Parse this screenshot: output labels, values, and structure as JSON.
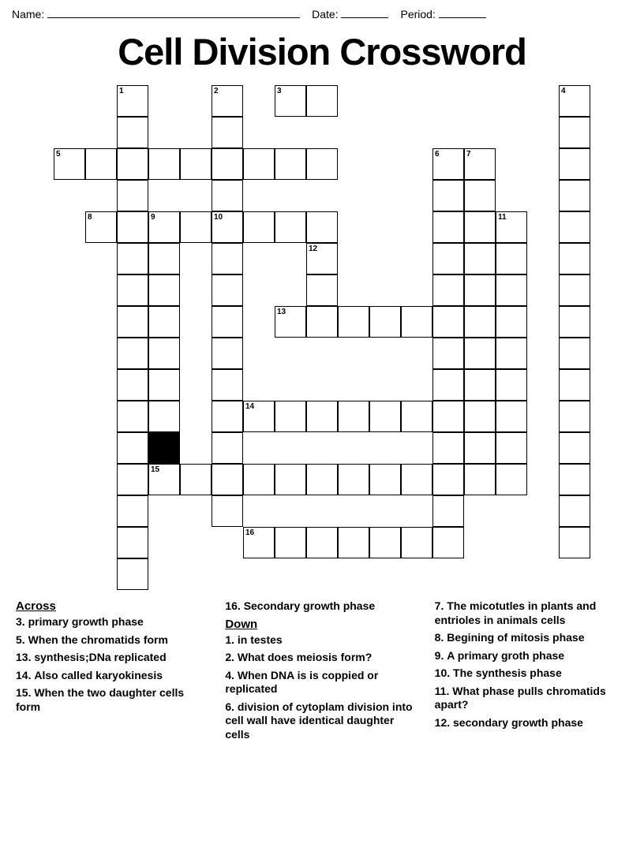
{
  "header": {
    "name_label": "Name:",
    "date_label": "Date:",
    "period_label": "Period:"
  },
  "title": "Cell Division Crossword",
  "grid": {
    "cell_size": 40,
    "cols": 17,
    "rows": 16,
    "cells": [
      {
        "r": 0,
        "c": 2,
        "num": "1"
      },
      {
        "r": 0,
        "c": 5,
        "num": "2"
      },
      {
        "r": 0,
        "c": 7,
        "num": "3"
      },
      {
        "r": 0,
        "c": 8
      },
      {
        "r": 0,
        "c": 16,
        "num": "4"
      },
      {
        "r": 1,
        "c": 2
      },
      {
        "r": 1,
        "c": 5
      },
      {
        "r": 1,
        "c": 16
      },
      {
        "r": 2,
        "c": 0,
        "num": "5"
      },
      {
        "r": 2,
        "c": 1
      },
      {
        "r": 2,
        "c": 2
      },
      {
        "r": 2,
        "c": 3
      },
      {
        "r": 2,
        "c": 4
      },
      {
        "r": 2,
        "c": 5
      },
      {
        "r": 2,
        "c": 6
      },
      {
        "r": 2,
        "c": 7
      },
      {
        "r": 2,
        "c": 8
      },
      {
        "r": 2,
        "c": 12,
        "num": "6"
      },
      {
        "r": 2,
        "c": 13,
        "num": "7"
      },
      {
        "r": 2,
        "c": 16
      },
      {
        "r": 3,
        "c": 2
      },
      {
        "r": 3,
        "c": 5
      },
      {
        "r": 3,
        "c": 12
      },
      {
        "r": 3,
        "c": 13
      },
      {
        "r": 3,
        "c": 16
      },
      {
        "r": 4,
        "c": 1,
        "num": "8"
      },
      {
        "r": 4,
        "c": 2
      },
      {
        "r": 4,
        "c": 3,
        "num": "9"
      },
      {
        "r": 4,
        "c": 4
      },
      {
        "r": 4,
        "c": 5,
        "num": "10"
      },
      {
        "r": 4,
        "c": 6
      },
      {
        "r": 4,
        "c": 7
      },
      {
        "r": 4,
        "c": 8
      },
      {
        "r": 4,
        "c": 12
      },
      {
        "r": 4,
        "c": 13
      },
      {
        "r": 4,
        "c": 14,
        "num": "11"
      },
      {
        "r": 4,
        "c": 16
      },
      {
        "r": 5,
        "c": 2
      },
      {
        "r": 5,
        "c": 3
      },
      {
        "r": 5,
        "c": 5
      },
      {
        "r": 5,
        "c": 8,
        "num": "12"
      },
      {
        "r": 5,
        "c": 12
      },
      {
        "r": 5,
        "c": 13
      },
      {
        "r": 5,
        "c": 14
      },
      {
        "r": 5,
        "c": 16
      },
      {
        "r": 6,
        "c": 2
      },
      {
        "r": 6,
        "c": 3
      },
      {
        "r": 6,
        "c": 5
      },
      {
        "r": 6,
        "c": 8
      },
      {
        "r": 6,
        "c": 12
      },
      {
        "r": 6,
        "c": 13
      },
      {
        "r": 6,
        "c": 14
      },
      {
        "r": 6,
        "c": 16
      },
      {
        "r": 7,
        "c": 2
      },
      {
        "r": 7,
        "c": 3
      },
      {
        "r": 7,
        "c": 5
      },
      {
        "r": 7,
        "c": 7,
        "num": "13"
      },
      {
        "r": 7,
        "c": 8
      },
      {
        "r": 7,
        "c": 9
      },
      {
        "r": 7,
        "c": 10
      },
      {
        "r": 7,
        "c": 11
      },
      {
        "r": 7,
        "c": 12
      },
      {
        "r": 7,
        "c": 13
      },
      {
        "r": 7,
        "c": 14
      },
      {
        "r": 7,
        "c": 16
      },
      {
        "r": 8,
        "c": 2
      },
      {
        "r": 8,
        "c": 3
      },
      {
        "r": 8,
        "c": 5
      },
      {
        "r": 8,
        "c": 12
      },
      {
        "r": 8,
        "c": 13
      },
      {
        "r": 8,
        "c": 14
      },
      {
        "r": 8,
        "c": 16
      },
      {
        "r": 9,
        "c": 2
      },
      {
        "r": 9,
        "c": 3
      },
      {
        "r": 9,
        "c": 5
      },
      {
        "r": 9,
        "c": 12
      },
      {
        "r": 9,
        "c": 13
      },
      {
        "r": 9,
        "c": 14
      },
      {
        "r": 9,
        "c": 16
      },
      {
        "r": 10,
        "c": 2
      },
      {
        "r": 10,
        "c": 3
      },
      {
        "r": 10,
        "c": 5
      },
      {
        "r": 10,
        "c": 6,
        "num": "14"
      },
      {
        "r": 10,
        "c": 7
      },
      {
        "r": 10,
        "c": 8
      },
      {
        "r": 10,
        "c": 9
      },
      {
        "r": 10,
        "c": 10
      },
      {
        "r": 10,
        "c": 11
      },
      {
        "r": 10,
        "c": 12
      },
      {
        "r": 10,
        "c": 13
      },
      {
        "r": 10,
        "c": 14
      },
      {
        "r": 10,
        "c": 16
      },
      {
        "r": 11,
        "c": 2
      },
      {
        "r": 11,
        "c": 3,
        "black": true
      },
      {
        "r": 11,
        "c": 5
      },
      {
        "r": 11,
        "c": 12
      },
      {
        "r": 11,
        "c": 13
      },
      {
        "r": 11,
        "c": 14
      },
      {
        "r": 11,
        "c": 16
      },
      {
        "r": 12,
        "c": 2
      },
      {
        "r": 12,
        "c": 3,
        "num": "15"
      },
      {
        "r": 12,
        "c": 4
      },
      {
        "r": 12,
        "c": 5
      },
      {
        "r": 12,
        "c": 6
      },
      {
        "r": 12,
        "c": 7
      },
      {
        "r": 12,
        "c": 8
      },
      {
        "r": 12,
        "c": 9
      },
      {
        "r": 12,
        "c": 10
      },
      {
        "r": 12,
        "c": 11
      },
      {
        "r": 12,
        "c": 12
      },
      {
        "r": 12,
        "c": 13
      },
      {
        "r": 12,
        "c": 14
      },
      {
        "r": 12,
        "c": 16
      },
      {
        "r": 13,
        "c": 2
      },
      {
        "r": 13,
        "c": 5
      },
      {
        "r": 13,
        "c": 12
      },
      {
        "r": 13,
        "c": 16
      },
      {
        "r": 14,
        "c": 2
      },
      {
        "r": 14,
        "c": 6,
        "num": "16"
      },
      {
        "r": 14,
        "c": 7
      },
      {
        "r": 14,
        "c": 8
      },
      {
        "r": 14,
        "c": 9
      },
      {
        "r": 14,
        "c": 10
      },
      {
        "r": 14,
        "c": 11
      },
      {
        "r": 14,
        "c": 12
      },
      {
        "r": 14,
        "c": 16
      },
      {
        "r": 15,
        "c": 2
      }
    ]
  },
  "clues": {
    "across_heading": "Across",
    "down_heading": "Down",
    "col1": [
      {
        "type": "heading",
        "text": "Across"
      },
      {
        "num": "3.",
        "text": "primary growth phase"
      },
      {
        "num": "5.",
        "text": "When the chromatids form"
      },
      {
        "num": "13.",
        "text": "synthesis;DNa replicated"
      },
      {
        "num": "14.",
        "text": "Also called karyokinesis"
      },
      {
        "num": "15.",
        "text": "When the two daughter cells form"
      }
    ],
    "col2": [
      {
        "num": "16.",
        "text": "Secondary growth phase"
      },
      {
        "type": "heading",
        "text": "Down"
      },
      {
        "num": "1.",
        "text": "in testes"
      },
      {
        "num": "2.",
        "text": "What does meiosis form?"
      },
      {
        "num": "4.",
        "text": "When DNA is is coppied or replicated"
      },
      {
        "num": "6.",
        "text": "division of cytoplam division into cell wall have identical daughter cells"
      }
    ],
    "col3": [
      {
        "num": "7.",
        "text": "The micotutles in plants and entrioles in animals cells"
      },
      {
        "num": "8.",
        "text": "Begining of mitosis phase"
      },
      {
        "num": "9.",
        "text": "A primary groth phase"
      },
      {
        "num": "10.",
        "text": "The synthesis phase"
      },
      {
        "num": "11.",
        "text": "What phase pulls chromatids apart?"
      },
      {
        "num": "12.",
        "text": "secondary growth phase"
      }
    ]
  }
}
